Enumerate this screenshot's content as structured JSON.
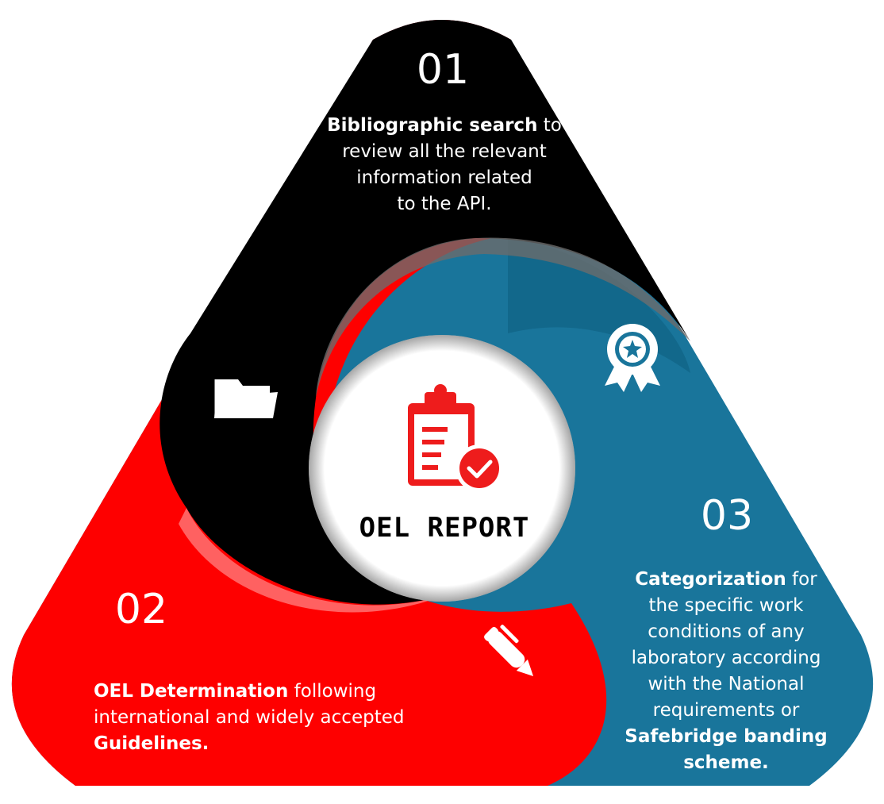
{
  "colors": {
    "step1": "#000000",
    "step2": "#fe0000",
    "step3": "#19759b",
    "center": "#ffffff",
    "accent": "#ee1c1c"
  },
  "center": {
    "label": "OEL REPORT",
    "icon": "clipboard-check-icon"
  },
  "steps": [
    {
      "number": "01",
      "icon": "folder-icon",
      "lines": [
        {
          "bold": "Bibliographic search",
          "rest": " to"
        },
        {
          "bold": "",
          "rest": "review all the relevant"
        },
        {
          "bold": "",
          "rest": "information related"
        },
        {
          "bold": "",
          "rest": "to the API."
        }
      ]
    },
    {
      "number": "02",
      "icon": "pen-icon",
      "lines": [
        {
          "bold": "OEL Determination",
          "rest": " following"
        },
        {
          "bold": "",
          "rest": "international and widely accepted"
        },
        {
          "bold": "Guidelines.",
          "rest": ""
        }
      ]
    },
    {
      "number": "03",
      "icon": "award-ribbon-icon",
      "lines": [
        {
          "bold": "Categorization",
          "rest": " for"
        },
        {
          "bold": "",
          "rest": "the specific work"
        },
        {
          "bold": "",
          "rest": "conditions of any"
        },
        {
          "bold": "",
          "rest": "laboratory according"
        },
        {
          "bold": "",
          "rest": "with the National"
        },
        {
          "bold": "",
          "rest": "requirements or"
        },
        {
          "bold": "Safebridge banding",
          "rest": ""
        },
        {
          "bold": "scheme.",
          "rest": ""
        }
      ]
    }
  ]
}
